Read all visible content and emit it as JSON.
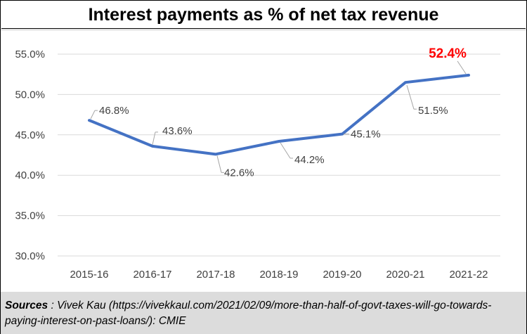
{
  "chart_data": {
    "type": "line",
    "title": "Interest payments as % of net tax revenue",
    "categories": [
      "2015-16",
      "2016-17",
      "2017-18",
      "2018-19",
      "2019-20",
      "2020-21",
      "2021-22"
    ],
    "values": [
      46.8,
      43.6,
      42.6,
      44.2,
      45.1,
      51.5,
      52.4
    ],
    "data_labels": [
      "46.8%",
      "43.6%",
      "42.6%",
      "44.2%",
      "45.1%",
      "51.5%",
      "52.4%"
    ],
    "highlight_index": 6,
    "ylim": [
      30,
      55
    ],
    "yticks": [
      30,
      35,
      40,
      45,
      50,
      55
    ],
    "ytick_labels": [
      "30.0%",
      "35.0%",
      "40.0%",
      "45.0%",
      "50.0%",
      "55.0%"
    ],
    "xlabel": "",
    "ylabel": "",
    "grid": true,
    "line_color": "#4472c4",
    "highlight_color": "#ff0000"
  },
  "sources": {
    "label": "Sources",
    "text": " : Vivek Kau (https://vivekkaul.com/2021/02/09/more-than-half-of-govt-taxes-will-go-towards-paying-interest-on-past-loans/): CMIE"
  }
}
